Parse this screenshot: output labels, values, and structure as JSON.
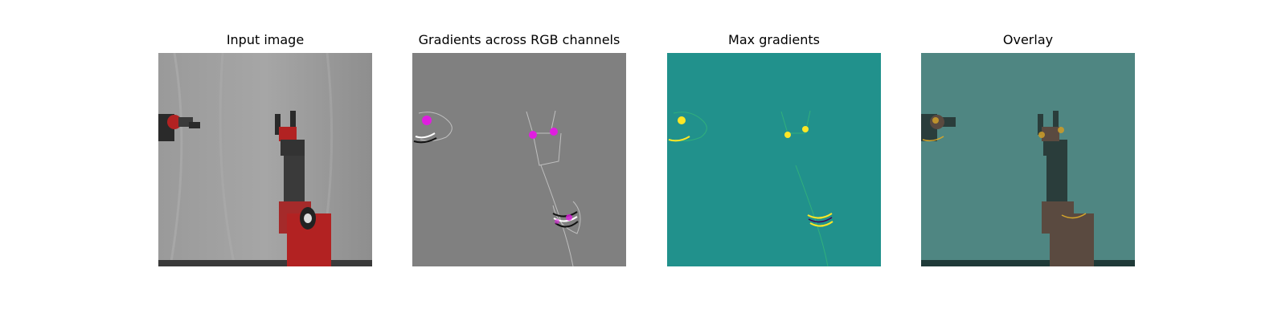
{
  "figure": {
    "panels": [
      {
        "title": "Input image",
        "kind": "photo"
      },
      {
        "title": "Gradients across RGB channels",
        "kind": "rgb-gradients"
      },
      {
        "title": "Max gradients",
        "kind": "max-gradients"
      },
      {
        "title": "Overlay",
        "kind": "overlay"
      }
    ]
  },
  "colors": {
    "photo_background": "#8c8c8c",
    "robot_red": "#b22222",
    "robot_dark": "#2a2a2a",
    "gradient_background": "#808080",
    "gradient_highlight": "#e01ee0",
    "max_background": "#21918c",
    "max_highlight": "#fde725",
    "overlay_background": "#4f8682"
  }
}
